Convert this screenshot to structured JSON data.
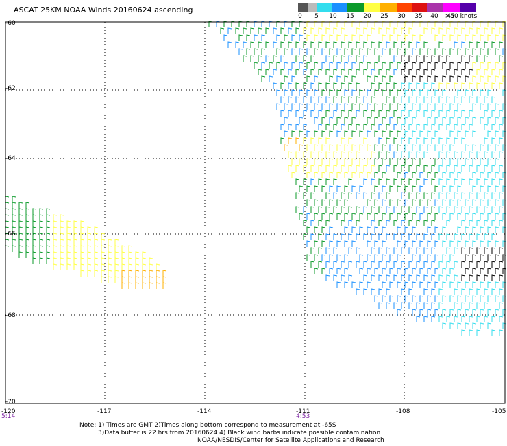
{
  "title": "ASCAT 25KM NOAA Winds 20160624 ascending",
  "colorbar": {
    "labels": [
      "0",
      "5",
      "10",
      "15",
      "20",
      "25",
      "30",
      "35",
      "40",
      "45",
      ">50 knots"
    ],
    "colors": [
      "#555555",
      "#bbbbbb",
      "#33ddee",
      "#1a90ff",
      "#0b9a2a",
      "#ffff44",
      "#ffb000",
      "#ff4400",
      "#dd1111",
      "#aa33aa",
      "#ff00ff",
      "#5500aa"
    ]
  },
  "axes": {
    "lat_labels": [
      "-60",
      "-62",
      "-64",
      "-66",
      "-68",
      "-70"
    ],
    "lon_labels": [
      "-120",
      "-117",
      "-114",
      "-111",
      "-108",
      "-105"
    ]
  },
  "time_labels": [
    "5:14",
    "4:53"
  ],
  "notes": {
    "line1": "Note: 1) Times are GMT 2)Times along bottom correspond to measurement at -65S",
    "line2": "3)Data buffer is 22 hrs from 20160624 4) Black wind barbs indicate possible contamination",
    "line3": "NOAA/NESDIS/Center for Satellite Applications and Research"
  }
}
